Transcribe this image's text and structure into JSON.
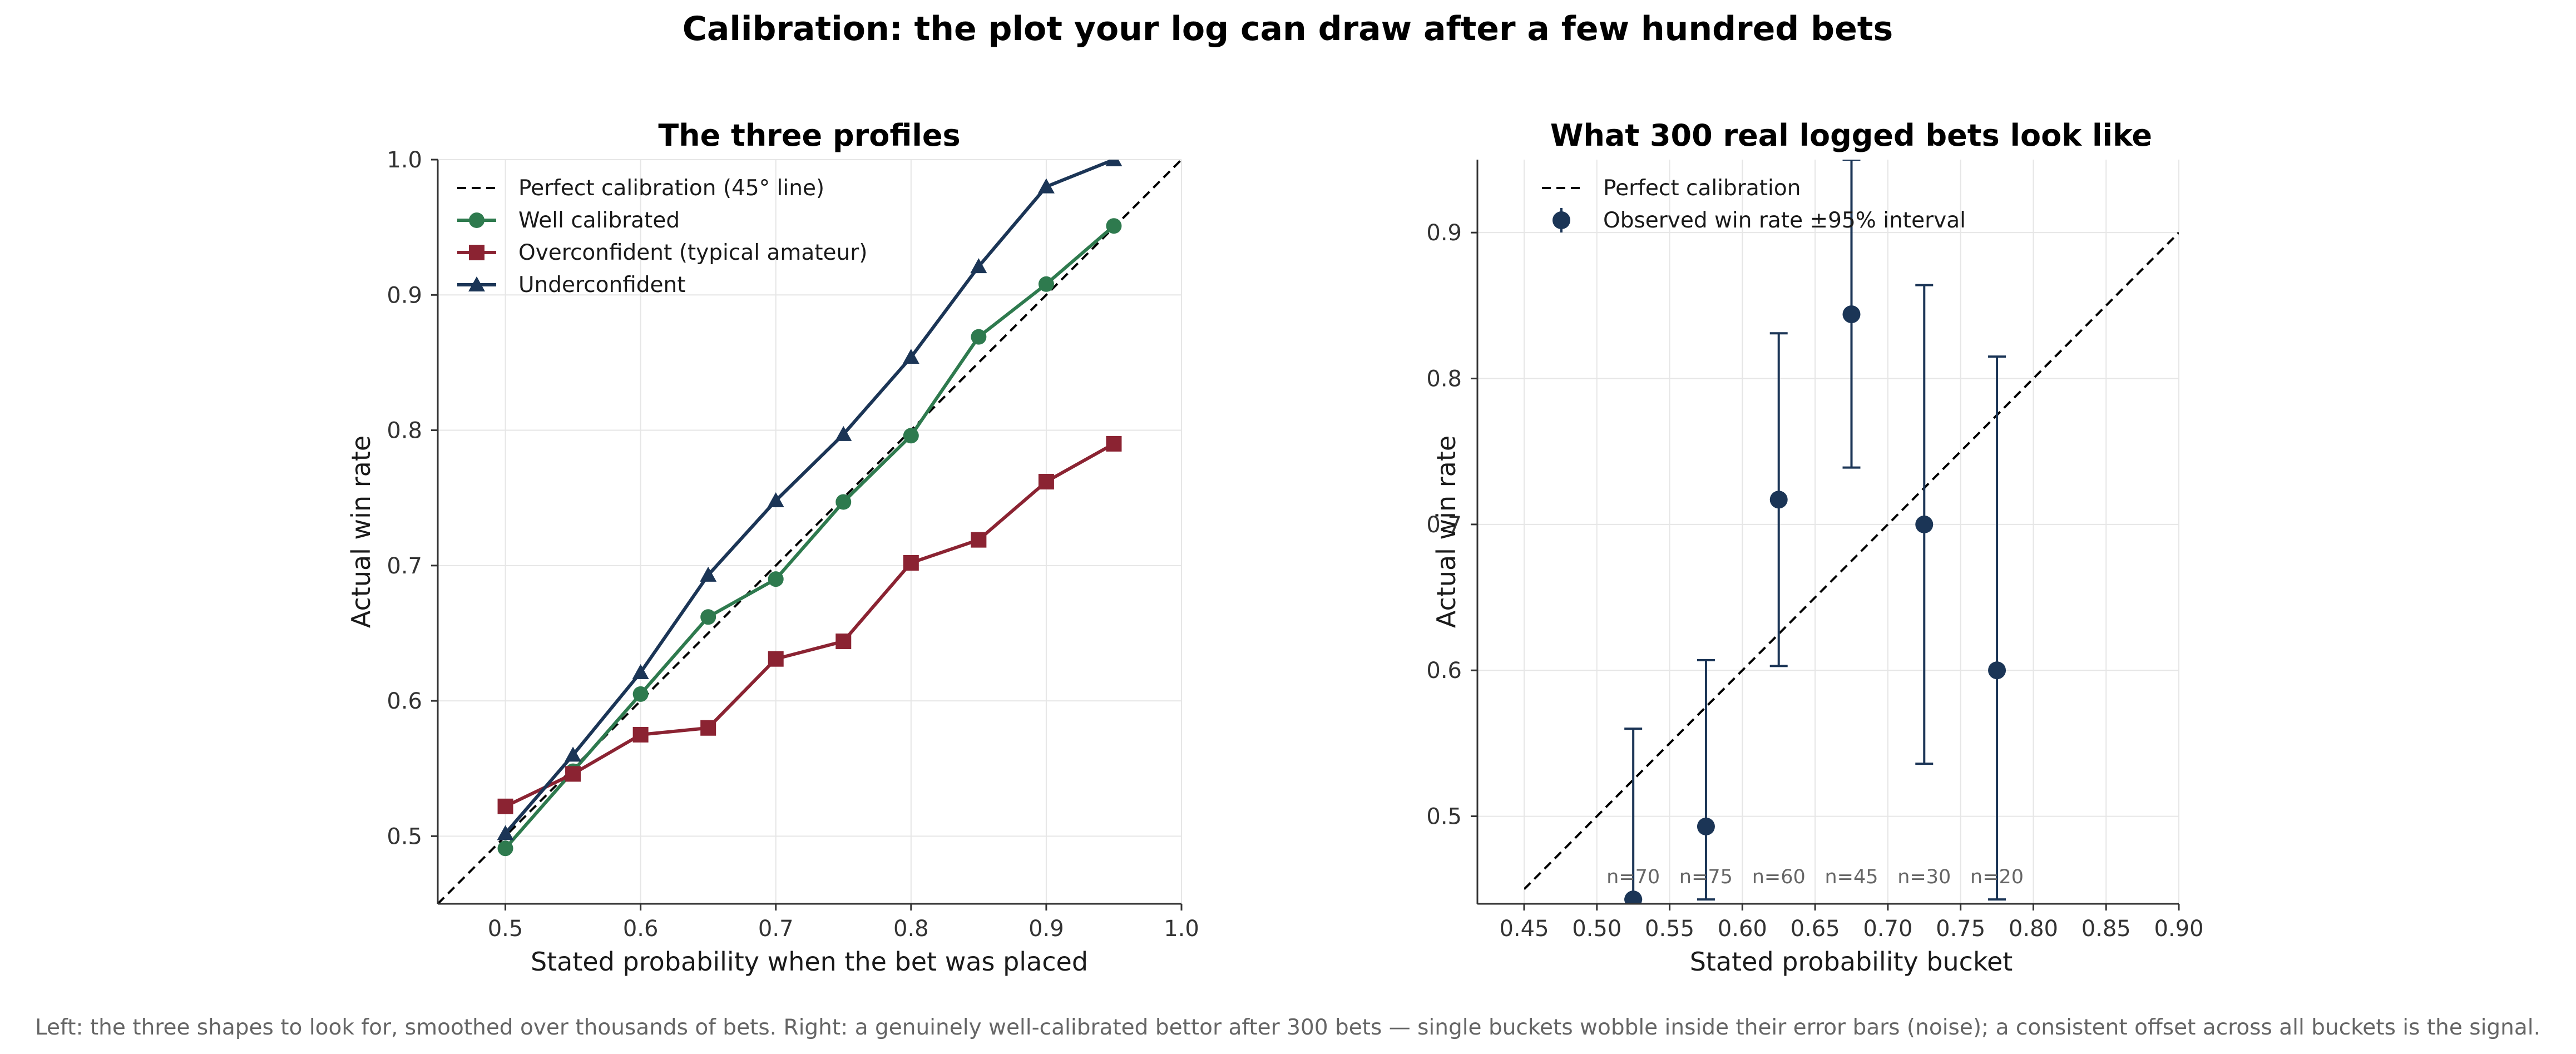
{
  "figure": {
    "title": "Calibration: the plot your log can draw after a few hundred bets",
    "caption": "Left: the three shapes to look for, smoothed over thousands of bets. Right: a genuinely well-calibrated bettor after 300 bets — single buckets wobble inside their error bars (noise); a consistent offset across all buckets is the signal."
  },
  "colors": {
    "perfect": "#000000",
    "well": "#2e7a4e",
    "over": "#8b2332",
    "under": "#1b3556",
    "observed": "#1b3556"
  },
  "chart_data": [
    {
      "type": "line",
      "title": "The three profiles",
      "xlabel": "Stated probability when the bet was placed",
      "ylabel": "Actual win rate",
      "xlim": [
        0.45,
        1.0
      ],
      "ylim": [
        0.45,
        1.0
      ],
      "xticks": [
        "0.5",
        "0.6",
        "0.7",
        "0.8",
        "0.9",
        "1.0"
      ],
      "yticks": [
        "0.5",
        "0.6",
        "0.7",
        "0.8",
        "0.9",
        "1.0"
      ],
      "grid": true,
      "legend_position": "top-left",
      "reference_line": {
        "name": "Perfect calibration (45° line)",
        "style": "dashed"
      },
      "x": [
        0.5,
        0.55,
        0.6,
        0.65,
        0.7,
        0.75,
        0.8,
        0.85,
        0.9,
        0.95
      ],
      "series": [
        {
          "name": "Well calibrated",
          "marker": "circle",
          "values": [
            0.491,
            0.548,
            0.605,
            0.662,
            0.69,
            0.747,
            0.796,
            0.869,
            0.908,
            0.951
          ]
        },
        {
          "name": "Overconfident (typical amateur)",
          "marker": "square",
          "values": [
            0.522,
            0.546,
            0.575,
            0.58,
            0.631,
            0.644,
            0.702,
            0.719,
            0.762,
            0.79
          ]
        },
        {
          "name": "Underconfident",
          "marker": "triangle",
          "values": [
            0.502,
            0.56,
            0.621,
            0.693,
            0.748,
            0.797,
            0.854,
            0.921,
            0.98,
            1.0
          ]
        }
      ]
    },
    {
      "type": "scatter",
      "title": "What 300 real logged bets look like",
      "xlabel": "Stated probability bucket",
      "ylabel": "Actual win rate",
      "xlim": [
        0.45,
        0.9
      ],
      "ylim": [
        0.44,
        0.95
      ],
      "xticks": [
        "0.45",
        "0.50",
        "0.55",
        "0.60",
        "0.65",
        "0.70",
        "0.75",
        "0.80",
        "0.85",
        "0.90"
      ],
      "yticks": [
        "0.5",
        "0.6",
        "0.7",
        "0.8",
        "0.9"
      ],
      "grid": true,
      "legend_position": "top-left",
      "reference_line": {
        "name": "Perfect calibration",
        "style": "dashed"
      },
      "series": [
        {
          "name": "Observed win rate ±95% interval",
          "points": [
            {
              "x": 0.525,
              "y": 0.443,
              "lo": 0.443,
              "hi": 0.56,
              "n": "n=70"
            },
            {
              "x": 0.575,
              "y": 0.493,
              "lo": 0.443,
              "hi": 0.607,
              "n": "n=75"
            },
            {
              "x": 0.625,
              "y": 0.717,
              "lo": 0.603,
              "hi": 0.831,
              "n": "n=60"
            },
            {
              "x": 0.675,
              "y": 0.844,
              "lo": 0.739,
              "hi": 0.95,
              "n": "n=45"
            },
            {
              "x": 0.725,
              "y": 0.7,
              "lo": 0.536,
              "hi": 0.864,
              "n": "n=30"
            },
            {
              "x": 0.775,
              "y": 0.6,
              "lo": 0.443,
              "hi": 0.815,
              "n": "n=20"
            }
          ]
        }
      ]
    }
  ]
}
